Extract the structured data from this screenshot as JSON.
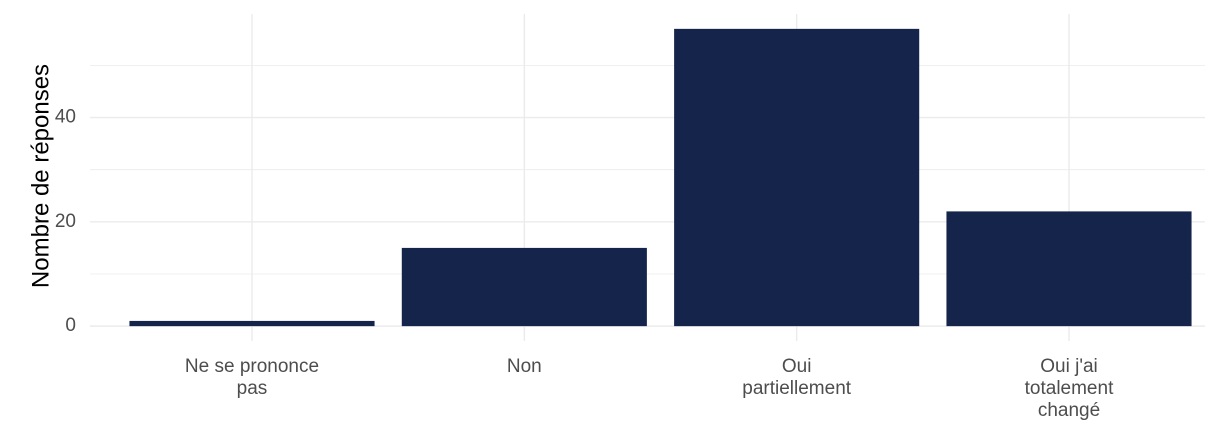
{
  "chart_data": {
    "type": "bar",
    "y_label": "Nombre de réponses",
    "categories": [
      "Ne se prononce\npas",
      "Non",
      "Oui\npartiellement",
      "Oui j'ai\ntotalement\nchangé"
    ],
    "values": [
      1,
      15,
      57,
      22
    ],
    "color": "#14244a",
    "ylim": [
      -2.85,
      59.85
    ],
    "yticks": [
      0,
      20,
      40
    ],
    "y_minor_ticks": [
      10,
      30,
      50
    ],
    "grid": true
  }
}
